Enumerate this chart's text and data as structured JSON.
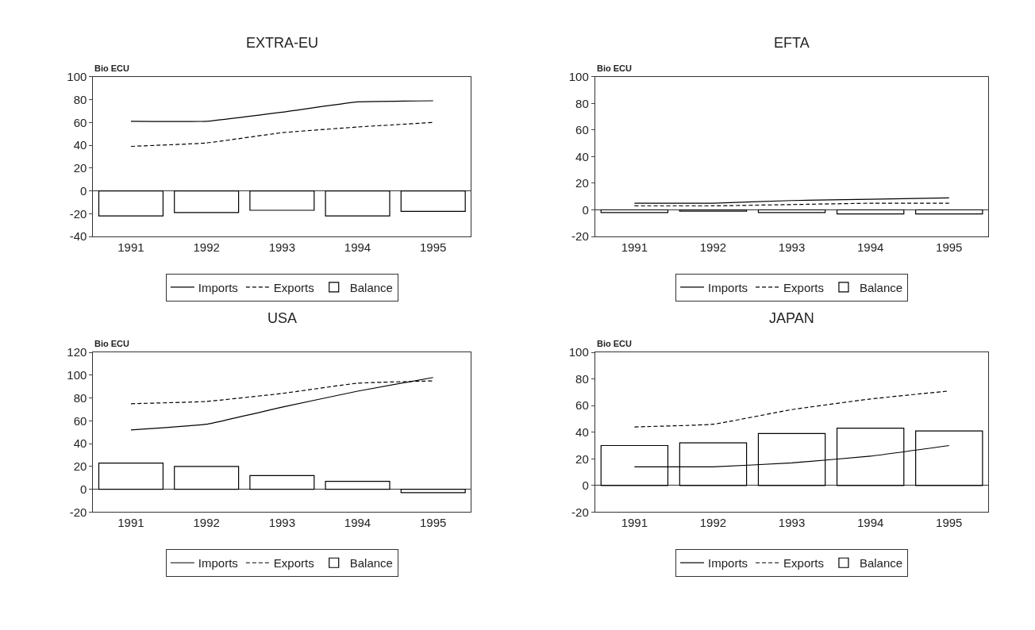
{
  "chart_data": [
    {
      "type": "bar",
      "title": "EXTRA-EU",
      "ylabel": "Bio ECU",
      "categories": [
        "1991",
        "1992",
        "1993",
        "1994",
        "1995"
      ],
      "ylim": [
        -40,
        100
      ],
      "yticks": [
        -40,
        -20,
        0,
        20,
        40,
        60,
        80,
        100
      ],
      "legend": "bottom",
      "series": [
        {
          "name": "Imports",
          "type": "line",
          "line_style": "solid",
          "color": "#000000",
          "values": [
            61,
            61,
            69,
            78,
            79
          ]
        },
        {
          "name": "Exports",
          "type": "line",
          "line_style": "dashed",
          "color": "#000000",
          "values": [
            39,
            42,
            51,
            56,
            60
          ]
        },
        {
          "name": "Balance",
          "color": "#000000",
          "values": [
            -22,
            -19,
            -17,
            -22,
            -18
          ]
        }
      ]
    },
    {
      "type": "bar",
      "title": "EFTA",
      "ylabel": "Bio ECU",
      "categories": [
        "1991",
        "1992",
        "1993",
        "1994",
        "1995"
      ],
      "ylim": [
        -20,
        100
      ],
      "yticks": [
        -20,
        0,
        20,
        40,
        60,
        80,
        100
      ],
      "legend": "bottom",
      "series": [
        {
          "name": "Imports",
          "type": "line",
          "line_style": "solid",
          "color": "#000000",
          "values": [
            5,
            5,
            7,
            8,
            9
          ]
        },
        {
          "name": "Exports",
          "type": "line",
          "line_style": "dashed",
          "color": "#000000",
          "values": [
            3,
            3,
            4,
            5,
            5
          ]
        },
        {
          "name": "Balance",
          "color": "#000000",
          "values": [
            -2,
            -1,
            -2,
            -3,
            -3
          ]
        }
      ]
    },
    {
      "type": "bar",
      "title": "USA",
      "ylabel": "Bio ECU",
      "categories": [
        "1991",
        "1992",
        "1993",
        "1994",
        "1995"
      ],
      "ylim": [
        -20,
        120
      ],
      "yticks": [
        -20,
        0,
        20,
        40,
        60,
        80,
        100,
        120
      ],
      "legend": "bottom",
      "series": [
        {
          "name": "Imports",
          "type": "line",
          "line_style": "solid",
          "color": "#000000",
          "values": [
            52,
            57,
            72,
            86,
            98
          ]
        },
        {
          "name": "Exports",
          "type": "line",
          "line_style": "dashed",
          "color": "#000000",
          "values": [
            75,
            77,
            84,
            93,
            95
          ]
        },
        {
          "name": "Balance",
          "color": "#000000",
          "values": [
            23,
            20,
            12,
            7,
            -3
          ]
        }
      ]
    },
    {
      "type": "bar",
      "title": "JAPAN",
      "ylabel": "Bio ECU",
      "categories": [
        "1991",
        "1992",
        "1993",
        "1994",
        "1995"
      ],
      "ylim": [
        -20,
        100
      ],
      "yticks": [
        -20,
        0,
        20,
        40,
        60,
        80,
        100
      ],
      "legend": "bottom",
      "series": [
        {
          "name": "Imports",
          "type": "line",
          "line_style": "solid",
          "color": "#000000",
          "values": [
            14,
            14,
            17,
            22,
            30
          ]
        },
        {
          "name": "Exports",
          "type": "line",
          "line_style": "dashed",
          "color": "#000000",
          "values": [
            44,
            46,
            57,
            65,
            71
          ]
        },
        {
          "name": "Balance",
          "color": "#000000",
          "values": [
            30,
            32,
            39,
            43,
            41
          ]
        }
      ]
    }
  ]
}
